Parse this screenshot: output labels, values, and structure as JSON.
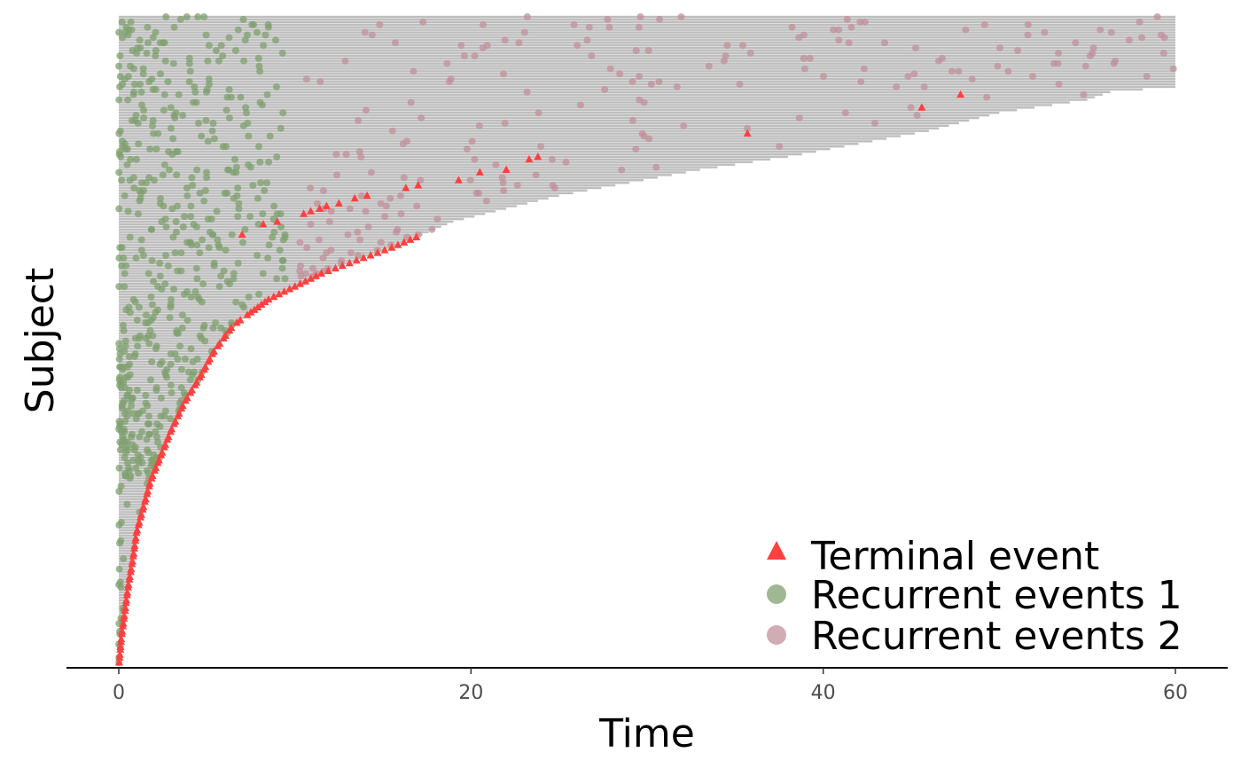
{
  "chart_data": {
    "type": "scatter",
    "xlabel": "Time",
    "ylabel": "Subject",
    "xlim": [
      0,
      60
    ],
    "x_ticks": [
      "0",
      "20",
      "40",
      "60"
    ],
    "subjects": 250,
    "legend_position": "bottom-right",
    "grid": false,
    "legend": [
      {
        "label": "Terminal event",
        "shape": "triangle",
        "color": "#ff4040"
      },
      {
        "label": "Recurrent events 1",
        "shape": "circle",
        "color": "#7fa06f"
      },
      {
        "label": "Recurrent events 2",
        "shape": "circle",
        "color": "#c0909a"
      }
    ],
    "colors": {
      "follow_up_bar": "#bebebe",
      "terminal": "#ff4040",
      "recurrent_1": "#7fa06f",
      "recurrent_2": "#c0909a"
    },
    "follow_up": {
      "description": "approximate follow-up time per subject, sorted descending (top subject = longest)",
      "checkpoints": [
        [
          1,
          60
        ],
        [
          28,
          60
        ],
        [
          30,
          56.3
        ],
        [
          33,
          55
        ],
        [
          38,
          50
        ],
        [
          45,
          46
        ],
        [
          50,
          42
        ],
        [
          55,
          38
        ],
        [
          60,
          33
        ],
        [
          65,
          29
        ],
        [
          70,
          25
        ],
        [
          75,
          22
        ],
        [
          80,
          19
        ],
        [
          90,
          15.5
        ],
        [
          100,
          11.5
        ],
        [
          110,
          8.5
        ],
        [
          120,
          6.5
        ],
        [
          130,
          5.4
        ],
        [
          140,
          4.6
        ],
        [
          150,
          3.7
        ],
        [
          160,
          3.0
        ],
        [
          170,
          2.4
        ],
        [
          180,
          1.8
        ],
        [
          190,
          1.4
        ],
        [
          200,
          1.0
        ],
        [
          210,
          0.8
        ],
        [
          220,
          0.55
        ],
        [
          230,
          0.35
        ],
        [
          240,
          0.15
        ],
        [
          250,
          0.02
        ]
      ],
      "terminal_subjects_top": [
        31,
        36,
        46,
        55,
        56,
        60,
        61,
        64,
        66,
        70,
        73,
        76,
        80,
        81,
        85,
        88,
        91,
        93,
        96,
        99,
        100,
        104,
        107,
        111,
        114
      ]
    },
    "series": [
      {
        "name": "Terminal event",
        "marker": "triangle",
        "points": [
          [
            47.8,
            31
          ],
          [
            45.6,
            36
          ],
          [
            35.7,
            46
          ],
          [
            23.8,
            55
          ],
          [
            23.3,
            56
          ],
          [
            22,
            60
          ],
          [
            20.5,
            61
          ],
          [
            19.3,
            64
          ],
          [
            17,
            66
          ],
          [
            16.3,
            67
          ],
          [
            14.1,
            70
          ],
          [
            13.4,
            71
          ],
          [
            12.5,
            73
          ],
          [
            11.8,
            74
          ],
          [
            11.4,
            75
          ],
          [
            10.9,
            76
          ],
          [
            10.5,
            77
          ],
          [
            9,
            80
          ],
          [
            8.2,
            81
          ],
          [
            7,
            85
          ]
        ]
      },
      {
        "name": "Recurrent events 1",
        "marker": "circle",
        "x_range": [
          0,
          9
        ]
      },
      {
        "name": "Recurrent events 2",
        "marker": "circle",
        "x_range": [
          10,
          60
        ]
      }
    ]
  }
}
